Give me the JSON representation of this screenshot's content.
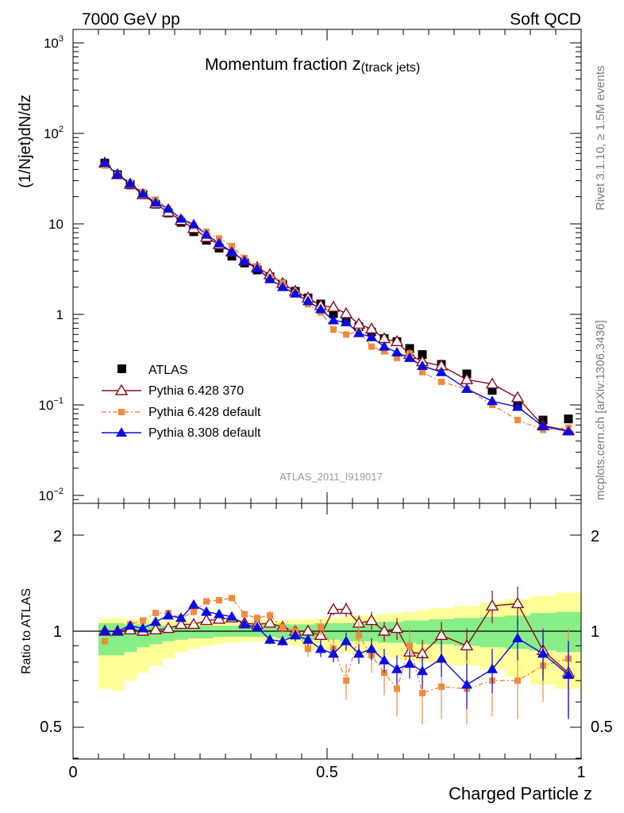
{
  "header": {
    "left": "7000 GeV pp",
    "right": "Soft QCD"
  },
  "side_labels": {
    "rivet": "Rivet 3.1.10, ≥ 1.5M events",
    "mcplots": "mcplots.cern.ch [arXiv:1306.3436]"
  },
  "chart_data": [
    {
      "type": "scatter",
      "title_main": "Momentum fraction ",
      "title_var": "z",
      "title_sub": "(track jets)",
      "ylabel": "(1/Njet)dN/dz",
      "yscale": "log",
      "ylim": [
        0.008,
        1300
      ],
      "xlim": [
        0,
        1
      ],
      "ytick_labels": {
        "1e-2": "10",
        "1e-2_exp": "−2",
        "1e-1": "10",
        "1e-1_exp": "−1",
        "1": "1",
        "10": "10",
        "1e2": "10",
        "1e2_exp": "2",
        "1e3": "10",
        "1e3_exp": "3"
      },
      "watermark": "ATLAS_2011_I919017",
      "legend": [
        "ATLAS",
        "Pythia 6.428 370",
        "Pythia 6.428 default",
        "Pythia 8.308 default"
      ],
      "x": [
        0.0625,
        0.0875,
        0.1125,
        0.1375,
        0.1625,
        0.1875,
        0.2125,
        0.2375,
        0.2625,
        0.2875,
        0.3125,
        0.3375,
        0.3625,
        0.3875,
        0.4125,
        0.4375,
        0.4625,
        0.4875,
        0.5125,
        0.5375,
        0.5625,
        0.5875,
        0.6125,
        0.6375,
        0.6625,
        0.6875,
        0.725,
        0.775,
        0.825,
        0.875,
        0.925,
        0.975
      ],
      "series": [
        {
          "name": "ATLAS",
          "color": "#000000",
          "values": [
            47,
            35,
            27,
            21,
            16.5,
            13.2,
            10.4,
            8.2,
            6.6,
            5.4,
            4.4,
            3.7,
            3.1,
            2.6,
            2.15,
            1.8,
            1.52,
            1.3,
            1.02,
            0.88,
            0.73,
            0.64,
            0.54,
            0.5,
            0.42,
            0.36,
            0.28,
            0.22,
            0.145,
            0.1,
            0.068,
            0.07
          ]
        },
        {
          "name": "Pythia 6.428 370",
          "color": "#8b0a1a",
          "values": [
            47,
            35,
            27.5,
            21,
            16.7,
            13.5,
            10.9,
            8.9,
            7.1,
            5.9,
            4.9,
            3.9,
            3.3,
            2.75,
            2.2,
            1.8,
            1.52,
            1.25,
            1.2,
            1.02,
            0.78,
            0.69,
            0.54,
            0.5,
            0.36,
            0.3,
            0.27,
            0.19,
            0.17,
            0.12,
            0.059,
            0.052
          ]
        },
        {
          "name": "Pythia 6.428 default",
          "color": "#f28a3c",
          "values": [
            44,
            35,
            28.5,
            22.5,
            18.5,
            14.8,
            11.4,
            9.5,
            8.2,
            6.9,
            5.7,
            4.2,
            3.4,
            2.6,
            2.2,
            1.72,
            1.3,
            1.05,
            0.68,
            0.6,
            0.65,
            0.44,
            0.39,
            0.33,
            0.37,
            0.23,
            0.18,
            0.15,
            0.1,
            0.068,
            0.053,
            0.056
          ]
        },
        {
          "name": "Pythia 8.308 default",
          "color": "#0a0ae6",
          "values": [
            47,
            35,
            28,
            21.5,
            17.2,
            14.7,
            11.4,
            9.9,
            7.6,
            6.1,
            4.9,
            3.9,
            3.2,
            2.45,
            2.0,
            1.7,
            1.4,
            1.14,
            0.86,
            0.82,
            0.62,
            0.56,
            0.44,
            0.38,
            0.33,
            0.27,
            0.23,
            0.15,
            0.11,
            0.095,
            0.058,
            0.051
          ]
        }
      ]
    },
    {
      "type": "scatter",
      "ylabel": "Ratio to ATLAS",
      "xlabel": "Charged Particle z",
      "xlim": [
        0,
        1
      ],
      "ylim": [
        0.4,
        2.3
      ],
      "ytick_labels": [
        "0.5",
        "1",
        "2"
      ],
      "xtick_labels": [
        "0",
        "0.5",
        "1"
      ],
      "x": [
        0.0625,
        0.0875,
        0.1125,
        0.1375,
        0.1625,
        0.1875,
        0.2125,
        0.2375,
        0.2625,
        0.2875,
        0.3125,
        0.3375,
        0.3625,
        0.3875,
        0.4125,
        0.4375,
        0.4625,
        0.4875,
        0.5125,
        0.5375,
        0.5625,
        0.5875,
        0.6125,
        0.6375,
        0.6625,
        0.6875,
        0.725,
        0.775,
        0.825,
        0.875,
        0.925,
        0.975
      ],
      "bands": {
        "bin_edges": [
          0.05,
          0.075,
          0.1,
          0.125,
          0.15,
          0.175,
          0.2,
          0.225,
          0.25,
          0.275,
          0.3,
          0.325,
          0.35,
          0.375,
          0.4,
          0.425,
          0.45,
          0.475,
          0.5,
          0.525,
          0.55,
          0.575,
          0.6,
          0.625,
          0.65,
          0.675,
          0.7,
          0.75,
          0.8,
          0.85,
          0.9,
          0.95,
          1.0
        ],
        "yellow_lo": [
          0.66,
          0.65,
          0.7,
          0.74,
          0.78,
          0.82,
          0.86,
          0.88,
          0.9,
          0.91,
          0.92,
          0.93,
          0.93,
          0.93,
          0.92,
          0.9,
          0.88,
          0.87,
          0.87,
          0.86,
          0.85,
          0.84,
          0.83,
          0.82,
          0.81,
          0.8,
          0.79,
          0.78,
          0.76,
          0.72,
          0.68,
          0.66
        ],
        "yellow_hi": [
          1.1,
          1.1,
          1.09,
          1.09,
          1.08,
          1.08,
          1.08,
          1.08,
          1.07,
          1.07,
          1.07,
          1.07,
          1.08,
          1.08,
          1.08,
          1.09,
          1.09,
          1.1,
          1.1,
          1.11,
          1.12,
          1.12,
          1.13,
          1.14,
          1.15,
          1.16,
          1.18,
          1.2,
          1.23,
          1.26,
          1.29,
          1.32
        ],
        "green_lo": [
          0.84,
          0.84,
          0.86,
          0.89,
          0.91,
          0.93,
          0.94,
          0.95,
          0.95,
          0.96,
          0.96,
          0.96,
          0.96,
          0.96,
          0.95,
          0.95,
          0.94,
          0.94,
          0.94,
          0.93,
          0.93,
          0.93,
          0.92,
          0.92,
          0.92,
          0.91,
          0.91,
          0.9,
          0.89,
          0.88,
          0.87,
          0.86
        ],
        "green_hi": [
          1.06,
          1.06,
          1.05,
          1.05,
          1.05,
          1.04,
          1.04,
          1.04,
          1.04,
          1.04,
          1.04,
          1.04,
          1.04,
          1.05,
          1.05,
          1.05,
          1.05,
          1.06,
          1.06,
          1.06,
          1.06,
          1.07,
          1.07,
          1.07,
          1.08,
          1.08,
          1.09,
          1.1,
          1.11,
          1.12,
          1.14,
          1.15
        ]
      },
      "series": [
        {
          "name": "Pythia 6.428 370",
          "color": "#8b0a1a",
          "values": [
            1.0,
            1.0,
            1.01,
            1.0,
            1.01,
            1.02,
            1.05,
            1.05,
            1.08,
            1.09,
            1.1,
            1.06,
            1.05,
            1.06,
            1.03,
            1.0,
            1.0,
            0.97,
            1.17,
            1.17,
            1.06,
            1.08,
            1.0,
            1.02,
            0.86,
            0.85,
            0.97,
            0.9,
            1.2,
            1.22,
            0.87,
            0.74
          ],
          "err": [
            0.02,
            0.02,
            0.02,
            0.02,
            0.02,
            0.02,
            0.02,
            0.02,
            0.02,
            0.02,
            0.03,
            0.03,
            0.03,
            0.03,
            0.03,
            0.03,
            0.04,
            0.05,
            0.05,
            0.06,
            0.06,
            0.07,
            0.07,
            0.08,
            0.08,
            0.09,
            0.1,
            0.12,
            0.14,
            0.16,
            0.15,
            0.2
          ]
        },
        {
          "name": "Pythia 6.428 default",
          "color": "#f28a3c",
          "values": [
            0.93,
            1.0,
            1.05,
            1.08,
            1.14,
            1.14,
            1.1,
            1.15,
            1.24,
            1.25,
            1.27,
            1.13,
            1.1,
            1.12,
            1.03,
            1.0,
            0.88,
            1.03,
            0.88,
            0.7,
            0.97,
            0.84,
            0.74,
            0.66,
            0.9,
            0.64,
            0.67,
            0.66,
            0.7,
            0.7,
            0.78,
            0.82
          ],
          "err": [
            0.02,
            0.02,
            0.02,
            0.02,
            0.02,
            0.02,
            0.02,
            0.03,
            0.03,
            0.03,
            0.03,
            0.03,
            0.03,
            0.04,
            0.04,
            0.05,
            0.05,
            0.06,
            0.08,
            0.09,
            0.1,
            0.1,
            0.11,
            0.12,
            0.12,
            0.13,
            0.14,
            0.15,
            0.16,
            0.17,
            0.18,
            0.2
          ]
        },
        {
          "name": "Pythia 8.308 default",
          "color": "#0a0ae6",
          "values": [
            1.0,
            1.0,
            1.04,
            1.02,
            1.07,
            1.12,
            1.1,
            1.21,
            1.15,
            1.13,
            1.11,
            1.05,
            1.03,
            0.94,
            0.93,
            0.97,
            0.94,
            0.88,
            0.85,
            0.93,
            0.85,
            0.88,
            0.81,
            0.76,
            0.79,
            0.75,
            0.82,
            0.68,
            0.76,
            0.95,
            0.85,
            0.73
          ],
          "err": [
            0.02,
            0.02,
            0.02,
            0.02,
            0.02,
            0.02,
            0.02,
            0.02,
            0.02,
            0.02,
            0.03,
            0.03,
            0.03,
            0.03,
            0.03,
            0.04,
            0.04,
            0.05,
            0.05,
            0.06,
            0.06,
            0.07,
            0.07,
            0.08,
            0.08,
            0.09,
            0.1,
            0.11,
            0.12,
            0.14,
            0.15,
            0.2
          ]
        }
      ]
    }
  ]
}
